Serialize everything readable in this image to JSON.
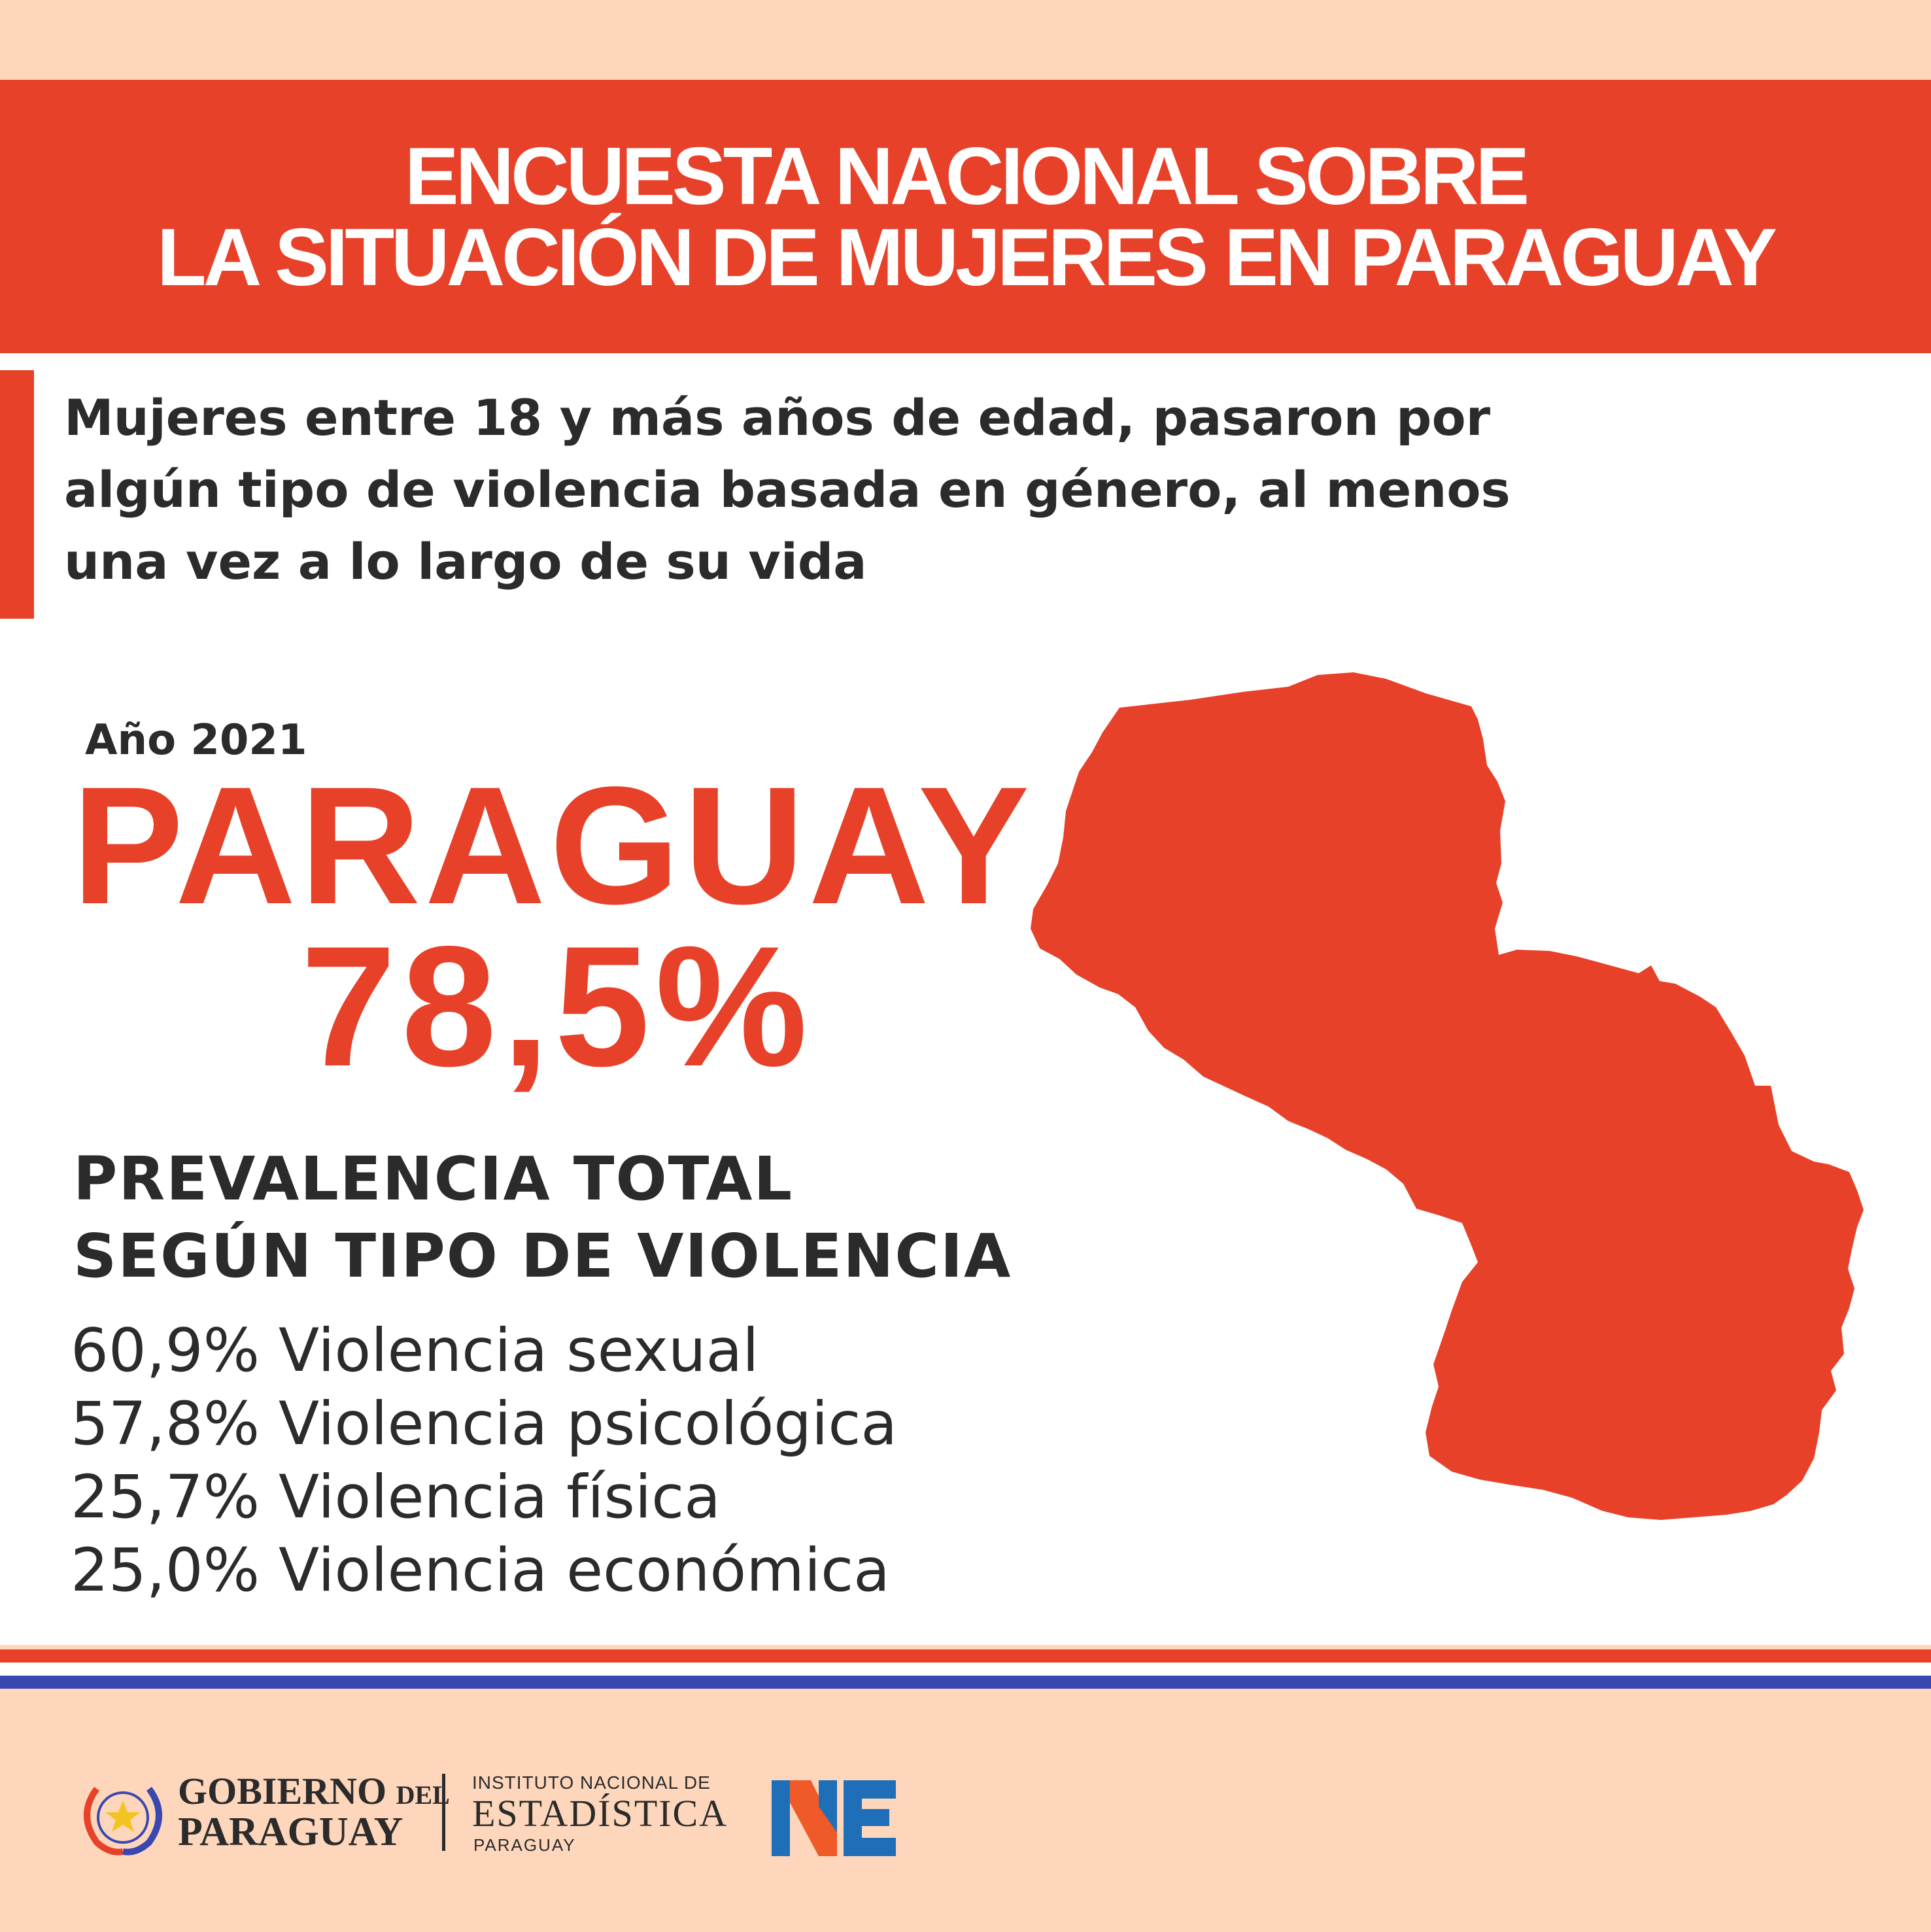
{
  "banner": {
    "line1": "ENCUESTA NACIONAL SOBRE",
    "line2": "LA SITUACIÓN DE MUJERES EN PARAGUAY"
  },
  "subtitle": {
    "line1": "Mujeres entre 18 y más años de edad, pasaron por",
    "line2": "algún tipo de violencia basada en género, al menos",
    "line3": "una vez a lo largo de su vida"
  },
  "year": "Año 2021",
  "country": "PARAGUAY",
  "total": "78,5%",
  "prevalence": {
    "line1": "PREVALENCIA TOTAL",
    "line2": "SEGÚN TIPO DE VIOLENCIA"
  },
  "stats": [
    "60,9% Violencia sexual",
    "57,8% Violencia psicológica",
    "25,7% Violencia física",
    "25,0% Violencia económica"
  ],
  "footer": {
    "gov_line1": "GOBIERNO",
    "gov_line1_small": "DEL",
    "gov_line2": "PARAGUAY",
    "ine_line1": "INSTITUTO NACIONAL DE",
    "ine_line2": "ESTADÍSTICA",
    "ine_line3": "PARAGUAY"
  },
  "colors": {
    "accent": "#e8412a",
    "background": "#fdd6bb",
    "text": "#2b2b2b",
    "flag_blue": "#3b47b0"
  },
  "icons": {
    "map": "paraguay-map-icon",
    "emblem": "government-emblem-icon",
    "ine_logo": "ine-logo-icon"
  }
}
